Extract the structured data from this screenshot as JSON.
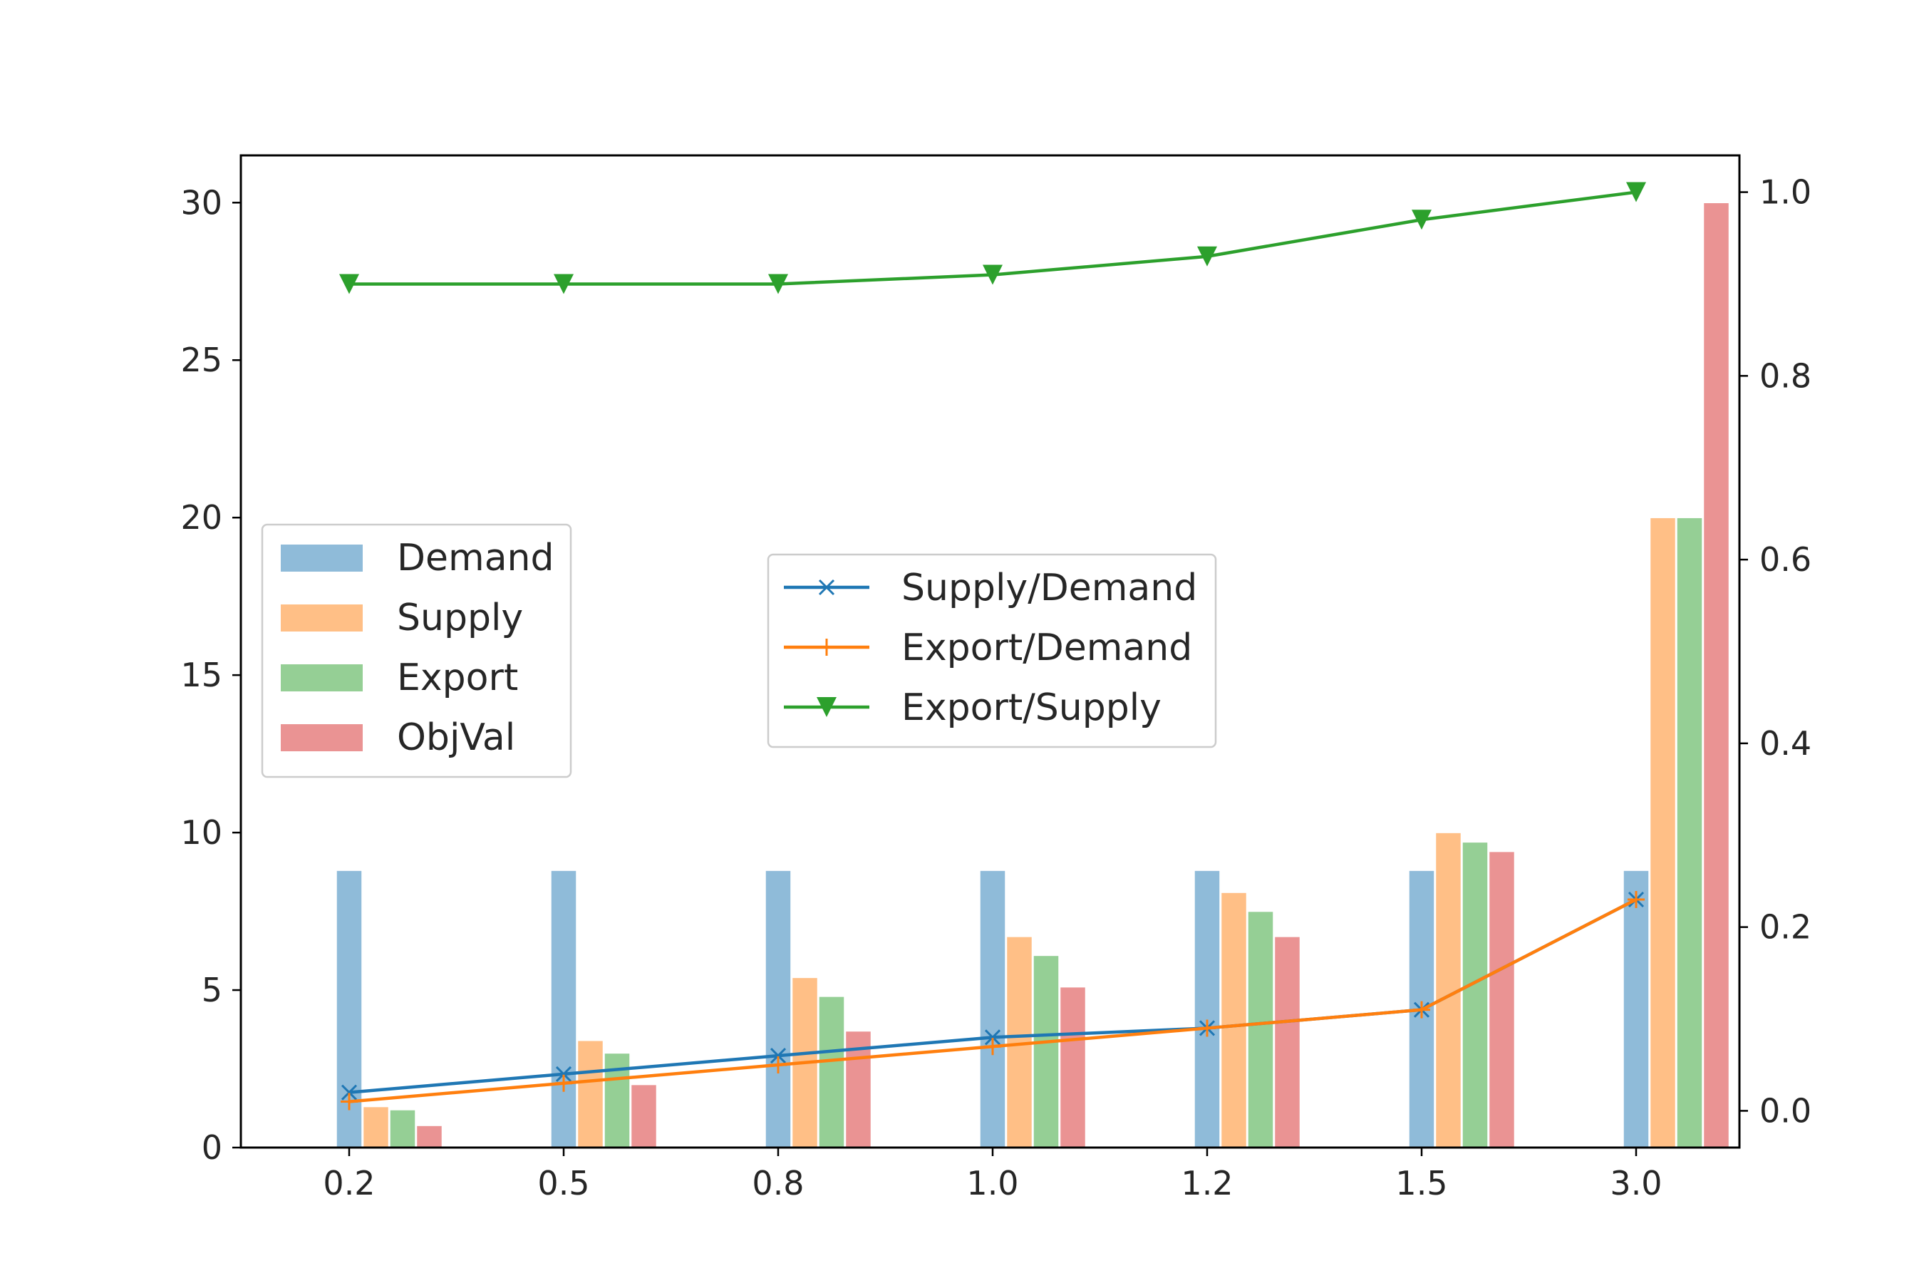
{
  "chart_data": {
    "type": "bar",
    "categories": [
      "0.2",
      "0.5",
      "0.8",
      "1.0",
      "1.2",
      "1.5",
      "3.0"
    ],
    "left_axis": {
      "ylim": [
        0,
        31.5
      ],
      "ticks": [
        "0",
        "5",
        "10",
        "15",
        "20",
        "25",
        "30"
      ]
    },
    "right_axis": {
      "ylim": [
        -0.04,
        1.04
      ],
      "ticks": [
        "0.0",
        "0.2",
        "0.4",
        "0.6",
        "0.8",
        "1.0"
      ]
    },
    "bar_series": [
      {
        "name": "Demand",
        "color": "#1f77b4",
        "values": [
          8.8,
          8.8,
          8.8,
          8.8,
          8.8,
          8.8,
          8.8
        ]
      },
      {
        "name": "Supply",
        "color": "#ff7f0e",
        "values": [
          1.3,
          3.4,
          5.4,
          6.7,
          8.1,
          10.0,
          20.0
        ]
      },
      {
        "name": "Export",
        "color": "#2ca02c",
        "values": [
          1.2,
          3.0,
          4.8,
          6.1,
          7.5,
          9.7,
          20.0
        ]
      },
      {
        "name": "ObjVal",
        "color": "#d62728",
        "values": [
          0.7,
          2.0,
          3.7,
          5.1,
          6.7,
          9.4,
          30.0
        ]
      }
    ],
    "line_series": [
      {
        "name": "Supply/Demand",
        "color": "#1f77b4",
        "marker": "x",
        "values": [
          0.02,
          0.04,
          0.06,
          0.08,
          0.09,
          0.11,
          0.23
        ]
      },
      {
        "name": "Export/Demand",
        "color": "#ff7f0e",
        "marker": "+",
        "values": [
          0.01,
          0.03,
          0.05,
          0.07,
          0.09,
          0.11,
          0.23
        ]
      },
      {
        "name": "Export/Supply",
        "color": "#2ca02c",
        "marker": "triangle-down",
        "values": [
          0.9,
          0.9,
          0.9,
          0.91,
          0.93,
          0.97,
          1.0
        ]
      }
    ],
    "bar_legend_position": "center-left",
    "line_legend_position": "center",
    "grid": false
  }
}
